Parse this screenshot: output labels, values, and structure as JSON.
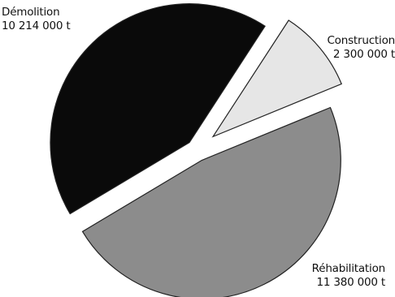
{
  "chart_data": {
    "type": "pie",
    "title": "",
    "unit": "t",
    "slices": [
      {
        "name": "Démolition",
        "value": 10214000,
        "value_label": "10 214 000 t",
        "color": "#0a0a0a"
      },
      {
        "name": "Construction",
        "value": 2300000,
        "value_label": "2 300 000 t",
        "color": "#e6e6e6"
      },
      {
        "name": "Réhabilitation",
        "value": 11380000,
        "value_label": "11 380 000 t",
        "color": "#8c8c8c"
      }
    ],
    "exploded": true,
    "legend": "none"
  }
}
